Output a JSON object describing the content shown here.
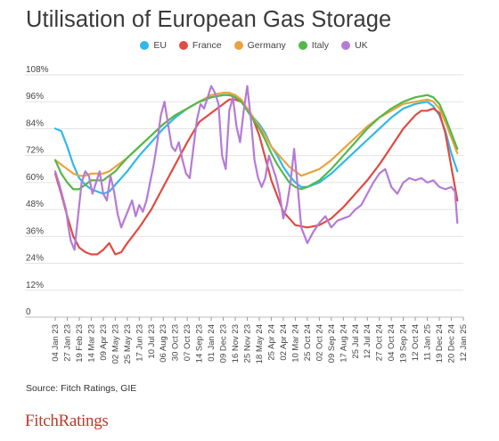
{
  "chart_data": {
    "type": "line",
    "title": "Utilisation of European Gas Storage",
    "xlabel": "",
    "ylabel": "",
    "ylim": [
      0,
      108
    ],
    "y_ticks": [
      "0",
      "12%",
      "24%",
      "36%",
      "48%",
      "60%",
      "72%",
      "84%",
      "96%",
      "108%"
    ],
    "y_tick_values": [
      0,
      12,
      24,
      36,
      48,
      60,
      72,
      84,
      96,
      108
    ],
    "x_ticks": [
      "04 Jan 23",
      "27 Jan 23",
      "19 Feb 23",
      "14 Mar 23",
      "09 Apr 23",
      "02 May 23",
      "25 May 23",
      "17 Jun 23",
      "10 Jul 23",
      "06 Aug 23",
      "30 Oct 23",
      "07 Oct 23",
      "14 Sep 23",
      "01 Jan 24",
      "09 Dec 23",
      "16 Nov 23",
      "25 Nov 23",
      "18 May 24",
      "25 Apr 24",
      "02 Apr 24",
      "10 Mar 24",
      "25 Oct 24",
      "02 Oct 24",
      "09 Sep 24",
      "17 Aug 24",
      "25 Jul 24",
      "12 Jul 24",
      "27 Oct 24",
      "04 Oct 24",
      "19 Sep 24",
      "12 Oct 24",
      "11 Jan 25",
      "19 Dec 24",
      "20 Dec 24",
      "12 Jan 25"
    ],
    "x_range": [
      0,
      34
    ],
    "grid": true,
    "legend_position": "top-center",
    "series": [
      {
        "name": "EU",
        "color": "#2fb9e8",
        "x": [
          0,
          0.5,
          1,
          1.5,
          2,
          2.5,
          3,
          3.5,
          4,
          4.5,
          5,
          5.5,
          6,
          7,
          8,
          9,
          10,
          11,
          12,
          13,
          14,
          14.5,
          15,
          15.5,
          16,
          16.5,
          17,
          17.5,
          18,
          18.5,
          19,
          19.5,
          20,
          20.5,
          21,
          22,
          23,
          24,
          25,
          26,
          27,
          28,
          29,
          30,
          31,
          31.5,
          32,
          32.5,
          33,
          33.5
        ],
        "values": [
          84,
          83,
          76,
          68,
          62,
          59,
          57,
          56,
          55,
          56,
          59,
          62,
          65,
          72,
          78,
          84,
          89,
          93,
          96,
          98,
          99,
          99,
          98,
          96,
          93,
          89,
          86,
          82,
          76,
          72,
          67,
          63,
          60,
          58,
          58,
          60,
          64,
          69,
          74,
          79,
          84,
          89,
          93,
          95,
          96,
          94,
          90,
          83,
          73,
          65
        ]
      },
      {
        "name": "France",
        "color": "#e04b42",
        "x": [
          0,
          0.5,
          1,
          1.5,
          2,
          2.5,
          3,
          3.5,
          4,
          4.5,
          5,
          5.5,
          6,
          7,
          8,
          9,
          10,
          11,
          12,
          13,
          14,
          14.5,
          15,
          15.5,
          16,
          16.5,
          17,
          17.5,
          18,
          18.5,
          19,
          19.5,
          20,
          21,
          22,
          23,
          24,
          25,
          26,
          27,
          28,
          29,
          30,
          30.5,
          31,
          31.5,
          32,
          32.5,
          33,
          33.5
        ],
        "values": [
          64,
          55,
          45,
          36,
          31,
          29,
          28,
          28,
          30,
          33,
          28,
          29,
          33,
          40,
          48,
          58,
          68,
          78,
          87,
          91,
          95,
          97,
          97,
          96,
          93,
          88,
          81,
          71,
          61,
          54,
          47,
          44,
          41,
          40,
          41,
          44,
          49,
          55,
          61,
          68,
          76,
          84,
          90,
          92,
          92,
          93,
          91,
          82,
          67,
          52
        ]
      },
      {
        "name": "Germany",
        "color": "#e9a33d",
        "x": [
          0,
          0.5,
          1,
          1.5,
          2,
          2.5,
          3,
          3.5,
          4,
          4.5,
          5,
          5.5,
          6,
          7,
          8,
          9,
          10,
          11,
          12,
          13,
          14,
          14.5,
          15,
          15.5,
          16,
          16.5,
          17,
          17.5,
          18,
          18.5,
          19,
          19.5,
          20,
          20.5,
          21,
          22,
          23,
          24,
          25,
          26,
          27,
          28,
          29,
          30,
          31,
          31.5,
          32,
          32.5,
          33,
          33.5
        ],
        "values": [
          70,
          68,
          66,
          64,
          63,
          63,
          64,
          64,
          64,
          65,
          67,
          69,
          71,
          76,
          81,
          86,
          90,
          93,
          96,
          99,
          100,
          100,
          99,
          97,
          93,
          89,
          85,
          81,
          76,
          73,
          70,
          67,
          65,
          63,
          64,
          66,
          70,
          75,
          80,
          85,
          89,
          92,
          95,
          96,
          97,
          96,
          93,
          87,
          80,
          73
        ]
      },
      {
        "name": "Italy",
        "color": "#55b749",
        "x": [
          0,
          0.5,
          1,
          1.5,
          2,
          2.5,
          3,
          3.5,
          4,
          4.5,
          5,
          5.5,
          6,
          7,
          8,
          9,
          10,
          11,
          12,
          13,
          14,
          14.5,
          15,
          15.5,
          16,
          16.5,
          17,
          17.5,
          18,
          18.5,
          19,
          19.5,
          20,
          20.5,
          21,
          22,
          23,
          24,
          25,
          26,
          27,
          28,
          29,
          30,
          31,
          31.5,
          32,
          32.5,
          33,
          33.5
        ],
        "values": [
          70,
          64,
          60,
          57,
          57,
          59,
          61,
          61,
          61,
          63,
          65,
          68,
          71,
          76,
          81,
          86,
          90,
          93,
          96,
          98,
          99,
          99,
          98,
          96,
          92,
          88,
          84,
          79,
          73,
          68,
          64,
          60,
          58,
          57,
          58,
          61,
          66,
          72,
          78,
          84,
          89,
          93,
          96,
          98,
          99,
          98,
          95,
          89,
          82,
          75
        ]
      },
      {
        "name": "UK",
        "color": "#b57ad6",
        "x": [
          0,
          0.3,
          0.6,
          0.9,
          1.1,
          1.3,
          1.6,
          1.9,
          2.2,
          2.5,
          2.8,
          3.1,
          3.4,
          3.7,
          4.0,
          4.3,
          4.6,
          4.9,
          5.2,
          5.5,
          5.8,
          6.1,
          6.4,
          6.7,
          7.0,
          7.3,
          7.6,
          7.9,
          8.2,
          8.5,
          8.8,
          9.1,
          9.4,
          9.7,
          10.0,
          10.3,
          10.6,
          10.9,
          11.2,
          11.5,
          11.8,
          12.1,
          12.4,
          12.7,
          13.0,
          13.3,
          13.6,
          13.9,
          14.2,
          14.5,
          14.8,
          15.1,
          15.4,
          15.7,
          16.0,
          16.3,
          16.6,
          16.9,
          17.2,
          17.5,
          17.8,
          18.1,
          18.4,
          18.7,
          19.0,
          19.3,
          19.6,
          19.9,
          20.2,
          20.5,
          21.0,
          21.5,
          22.0,
          22.5,
          23.0,
          23.5,
          24.0,
          24.5,
          25.0,
          25.5,
          26.0,
          26.5,
          27.0,
          27.5,
          28.0,
          28.5,
          29.0,
          29.5,
          30.0,
          30.5,
          31.0,
          31.5,
          32.0,
          32.5,
          33.0,
          33.3,
          33.5
        ],
        "values": [
          65,
          60,
          54,
          48,
          40,
          34,
          30,
          45,
          60,
          65,
          63,
          55,
          60,
          65,
          55,
          52,
          63,
          56,
          46,
          40,
          44,
          48,
          52,
          45,
          50,
          47,
          52,
          60,
          68,
          78,
          90,
          96,
          86,
          76,
          74,
          78,
          70,
          64,
          62,
          75,
          88,
          95,
          93,
          98,
          103,
          100,
          95,
          72,
          66,
          92,
          98,
          85,
          78,
          92,
          103,
          88,
          70,
          62,
          58,
          62,
          72,
          67,
          62,
          55,
          44,
          50,
          60,
          75,
          58,
          40,
          33,
          38,
          42,
          45,
          40,
          43,
          44,
          45,
          48,
          50,
          55,
          60,
          64,
          66,
          58,
          55,
          60,
          62,
          61,
          62,
          60,
          61,
          58,
          57,
          58,
          56,
          42
        ]
      }
    ]
  },
  "source": "Source: Fitch Ratings, GIE",
  "brand": "FitchRatings"
}
